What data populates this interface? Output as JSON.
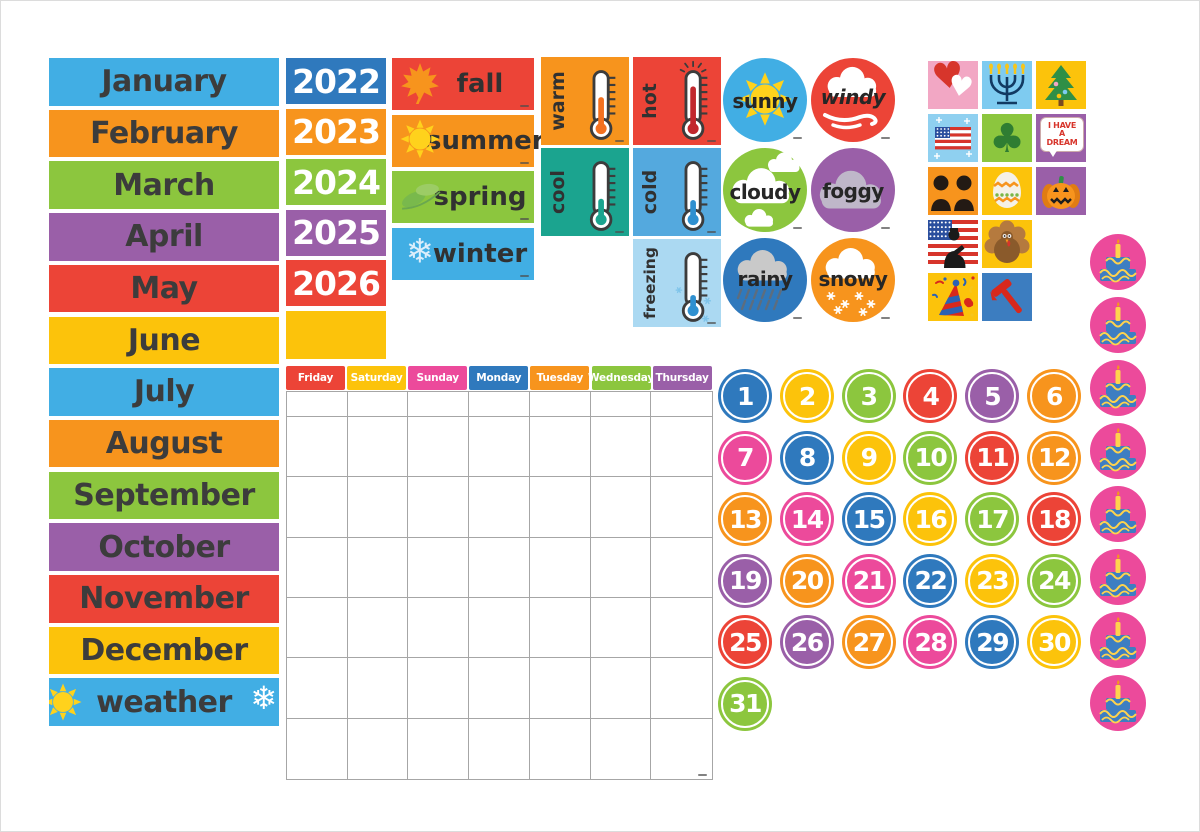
{
  "palette": {
    "blue": "#41aee4",
    "dark_blue": "#2f79bd",
    "orange": "#f7941d",
    "green": "#8cc63e",
    "purple": "#9a5fa8",
    "red": "#ec4437",
    "yellow": "#fcc30b",
    "pink": "#ec4a9b",
    "teal": "#1ba48f",
    "cold_blue": "#54a9de",
    "ice_blue": "#abd9f2",
    "light_pink": "#f2a7c4",
    "sky_blue": "#7ecbf0",
    "ink": "#3c3c3c"
  },
  "months": [
    {
      "label": "January",
      "color": "blue"
    },
    {
      "label": "February",
      "color": "orange"
    },
    {
      "label": "March",
      "color": "green"
    },
    {
      "label": "April",
      "color": "purple"
    },
    {
      "label": "May",
      "color": "red"
    },
    {
      "label": "June",
      "color": "yellow"
    },
    {
      "label": "July",
      "color": "blue"
    },
    {
      "label": "August",
      "color": "orange"
    },
    {
      "label": "September",
      "color": "green"
    },
    {
      "label": "October",
      "color": "purple"
    },
    {
      "label": "November",
      "color": "red"
    },
    {
      "label": "December",
      "color": "yellow"
    }
  ],
  "weather_strip": {
    "label": "weather",
    "color": "blue"
  },
  "years": [
    {
      "label": "2022",
      "color": "dark_blue"
    },
    {
      "label": "2023",
      "color": "orange"
    },
    {
      "label": "2024",
      "color": "green"
    },
    {
      "label": "2025",
      "color": "purple"
    },
    {
      "label": "2026",
      "color": "red"
    }
  ],
  "year_blank": {
    "color": "yellow"
  },
  "seasons": [
    {
      "label": "fall",
      "color": "red",
      "icon": "maple-leaf-icon"
    },
    {
      "label": "summer",
      "color": "orange",
      "icon": "sun-icon"
    },
    {
      "label": "spring",
      "color": "green",
      "icon": "leaves-icon"
    },
    {
      "label": "winter",
      "color": "blue",
      "icon": "snowflake-icon"
    }
  ],
  "temperatures": [
    {
      "label": "warm",
      "color": "orange",
      "mercury": "#f4711f",
      "level": 0.55,
      "style": "plain"
    },
    {
      "label": "hot",
      "color": "red",
      "mercury": "#c1272d",
      "level": 0.8,
      "style": "burst"
    },
    {
      "label": "cool",
      "color": "teal",
      "mercury": "#1ba48f",
      "level": 0.3,
      "style": "plain"
    },
    {
      "label": "cold",
      "color": "cold_blue",
      "mercury": "#2f90d0",
      "level": 0.27,
      "style": "plain"
    },
    {
      "label": "freezing",
      "color": "ice_blue",
      "mercury": "#2f90d0",
      "level": 0.18,
      "style": "flakes"
    }
  ],
  "weather_circles": [
    {
      "label": "sunny",
      "color": "blue",
      "icon": "sun-icon",
      "italic": false
    },
    {
      "label": "windy",
      "color": "red",
      "icon": "wind-cloud-icon",
      "italic": true
    },
    {
      "label": "cloudy",
      "color": "green",
      "icon": "clouds-icon",
      "italic": false
    },
    {
      "label": "foggy",
      "color": "purple",
      "icon": "fog-cloud-icon",
      "italic": false
    },
    {
      "label": "rainy",
      "color": "dark_blue",
      "icon": "rain-cloud-icon",
      "italic": false
    },
    {
      "label": "snowy",
      "color": "orange",
      "icon": "snow-cloud-icon",
      "italic": false
    }
  ],
  "holidays": [
    {
      "name": "valentines-hearts-icon",
      "bg": "#f2a7c4"
    },
    {
      "name": "hanukkah-menorah-icon",
      "bg": "#7ecbf0"
    },
    {
      "name": "christmas-tree-icon",
      "bg": "#fcc30b"
    },
    {
      "name": "independence-flag-icon",
      "bg": "#8fd0f0"
    },
    {
      "name": "shamrock-icon",
      "bg": "#8cc63e"
    },
    {
      "name": "mlk-dream-icon",
      "bg": "#9a5fa8",
      "lines": [
        "I HAVE",
        "A",
        "DREAM"
      ]
    },
    {
      "name": "presidents-day-icon",
      "bg": "#f7941d"
    },
    {
      "name": "easter-egg-icon",
      "bg": "#fcc30b"
    },
    {
      "name": "halloween-pumpkin-icon",
      "bg": "#9a5fa8"
    },
    {
      "name": "veterans-day-soldier-icon",
      "bg": "#ffffff"
    },
    {
      "name": "thanksgiving-turkey-icon",
      "bg": "#fcc30b"
    },
    {
      "name": "new-years-party-icon",
      "bg": "#fcc30b"
    },
    {
      "name": "labor-day-hammer-icon",
      "bg": "#3c7dc0"
    }
  ],
  "calendar": {
    "day_headers": [
      {
        "label": "Friday",
        "color": "red"
      },
      {
        "label": "Saturday",
        "color": "yellow"
      },
      {
        "label": "Sunday",
        "color": "pink"
      },
      {
        "label": "Monday",
        "color": "dark_blue"
      },
      {
        "label": "Tuesday",
        "color": "orange"
      },
      {
        "label": "Wednesday",
        "color": "green"
      },
      {
        "label": "Thursday",
        "color": "purple"
      }
    ],
    "columns": 7,
    "rows": 7
  },
  "numbers": [
    {
      "value": "1",
      "color": "dark_blue"
    },
    {
      "value": "2",
      "color": "yellow"
    },
    {
      "value": "3",
      "color": "green"
    },
    {
      "value": "4",
      "color": "red"
    },
    {
      "value": "5",
      "color": "purple"
    },
    {
      "value": "6",
      "color": "orange"
    },
    {
      "value": "7",
      "color": "pink"
    },
    {
      "value": "8",
      "color": "dark_blue"
    },
    {
      "value": "9",
      "color": "yellow"
    },
    {
      "value": "10",
      "color": "green"
    },
    {
      "value": "11",
      "color": "red"
    },
    {
      "value": "12",
      "color": "orange"
    },
    {
      "value": "13",
      "color": "orange"
    },
    {
      "value": "14",
      "color": "pink"
    },
    {
      "value": "15",
      "color": "dark_blue"
    },
    {
      "value": "16",
      "color": "yellow"
    },
    {
      "value": "17",
      "color": "green"
    },
    {
      "value": "18",
      "color": "red"
    },
    {
      "value": "19",
      "color": "purple"
    },
    {
      "value": "20",
      "color": "orange"
    },
    {
      "value": "21",
      "color": "pink"
    },
    {
      "value": "22",
      "color": "dark_blue"
    },
    {
      "value": "23",
      "color": "yellow"
    },
    {
      "value": "24",
      "color": "green"
    },
    {
      "value": "25",
      "color": "red"
    },
    {
      "value": "26",
      "color": "purple"
    },
    {
      "value": "27",
      "color": "orange"
    },
    {
      "value": "28",
      "color": "pink"
    },
    {
      "value": "29",
      "color": "dark_blue"
    },
    {
      "value": "30",
      "color": "yellow"
    },
    {
      "value": "31",
      "color": "green"
    }
  ],
  "birthday_cakes": {
    "count": 8,
    "color": "pink",
    "icon": "birthday-cake-icon"
  }
}
